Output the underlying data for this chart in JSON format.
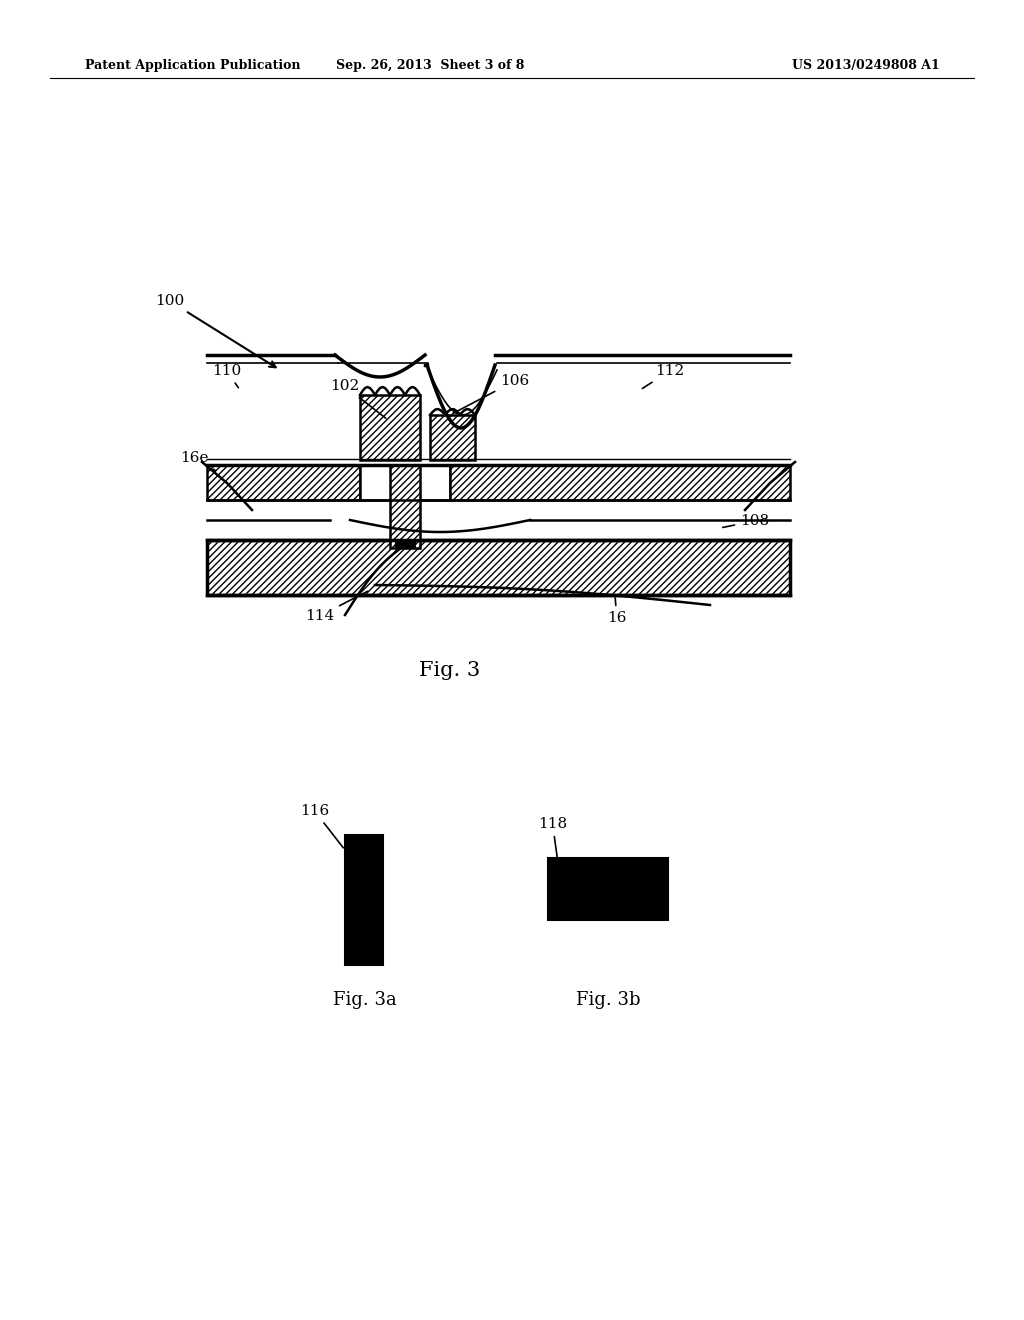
{
  "bg_color": "#ffffff",
  "header_left": "Patent Application Publication",
  "header_mid": "Sep. 26, 2013  Sheet 3 of 8",
  "header_right": "US 2013/0249808 A1",
  "fig3_label": "Fig. 3",
  "fig3a_label": "Fig. 3a",
  "fig3b_label": "Fig. 3b"
}
